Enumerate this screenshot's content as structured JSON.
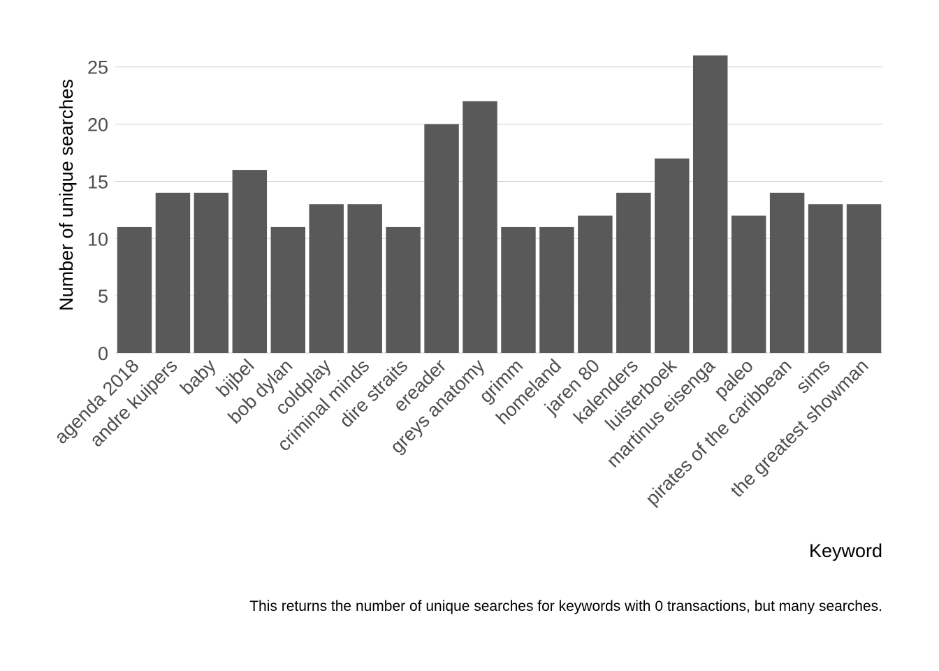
{
  "chart_data": {
    "type": "bar",
    "categories": [
      "agenda 2018",
      "andre kuipers",
      "baby",
      "bijbel",
      "bob dylan",
      "coldplay",
      "criminal minds",
      "dire straits",
      "ereader",
      "greys anatomy",
      "grimm",
      "homeland",
      "jaren 80",
      "kalenders",
      "luisterboek",
      "martinus eisenga",
      "paleo",
      "pirates of the caribbean",
      "sims",
      "the greatest showman"
    ],
    "values": [
      11,
      14,
      14,
      16,
      11,
      13,
      13,
      11,
      20,
      22,
      11,
      11,
      12,
      14,
      17,
      26,
      12,
      14,
      13,
      13
    ],
    "xlabel": "Keyword",
    "ylabel": "Number of unique searches",
    "caption": "This returns the number of unique searches for keywords with 0 transactions, but many searches.",
    "ylim": [
      0,
      27
    ],
    "yticks": [
      0,
      5,
      10,
      15,
      20,
      25
    ],
    "ytick_labels": [
      "0",
      "5",
      "10",
      "15",
      "20",
      "25"
    ],
    "grid": "horizontal",
    "bar_color": "#595959",
    "grid_color": "#d0d0d0"
  }
}
